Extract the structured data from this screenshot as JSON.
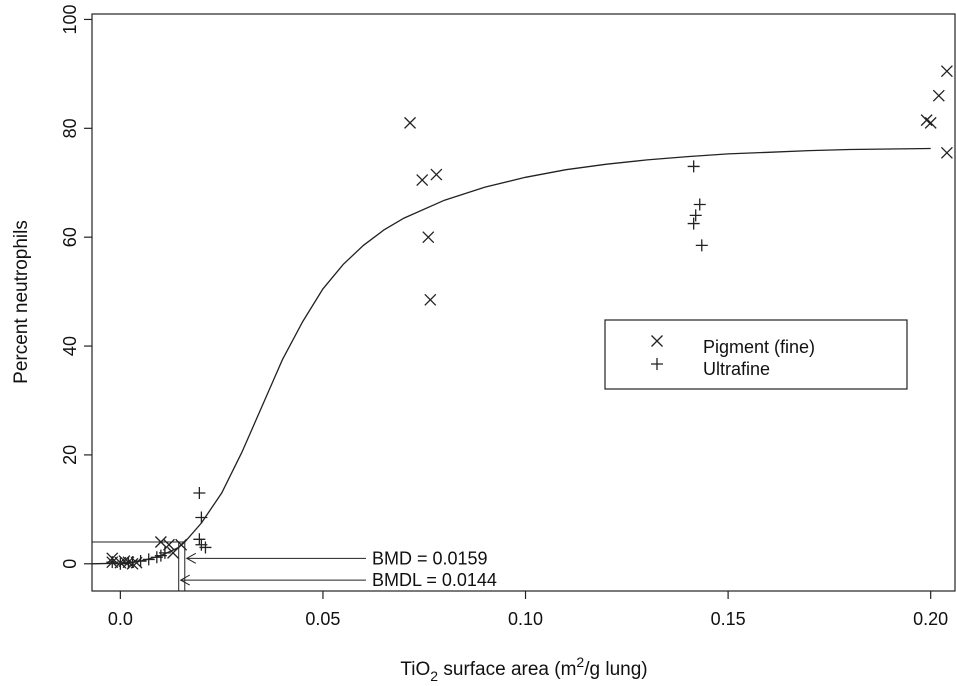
{
  "chart_data": {
    "type": "scatter",
    "xlabel_parts": {
      "pre": "TiO",
      "sub": "2",
      "mid": " surface area (m",
      "sup": "2",
      "post": "/g lung)"
    },
    "ylabel": "Percent neutrophils",
    "xlim": [
      -0.007,
      0.206
    ],
    "ylim": [
      -5,
      101
    ],
    "x_ticks": [
      0.0,
      0.05,
      0.1,
      0.15,
      0.2
    ],
    "x_tick_labels": [
      "0.0",
      "0.05",
      "0.10",
      "0.15",
      "0.20"
    ],
    "y_ticks": [
      0,
      20,
      40,
      60,
      80,
      100
    ],
    "y_tick_labels": [
      "0",
      "20",
      "40",
      "60",
      "80",
      "100"
    ],
    "legend_position": "right-center",
    "series": [
      {
        "name": "Pigment (fine)",
        "marker": "x",
        "points": [
          [
            -0.002,
            1.0
          ],
          [
            -0.002,
            0.3
          ],
          [
            0.0,
            0.2
          ],
          [
            0.001,
            0.5
          ],
          [
            0.002,
            0.3
          ],
          [
            0.003,
            0.0
          ],
          [
            0.004,
            0.2
          ],
          [
            0.01,
            4.0
          ],
          [
            0.012,
            3.5
          ],
          [
            0.013,
            2.0
          ],
          [
            0.015,
            3.5
          ],
          [
            0.0715,
            81.0
          ],
          [
            0.0745,
            70.5
          ],
          [
            0.076,
            60.0
          ],
          [
            0.0765,
            48.5
          ],
          [
            0.078,
            71.5
          ],
          [
            0.199,
            81.5
          ],
          [
            0.2,
            81.0
          ],
          [
            0.202,
            86.0
          ],
          [
            0.204,
            90.5
          ],
          [
            0.204,
            75.5
          ]
        ]
      },
      {
        "name": "Ultrafine",
        "marker": "+",
        "points": [
          [
            -0.002,
            0.3
          ],
          [
            0.0,
            0.0
          ],
          [
            0.002,
            0.2
          ],
          [
            0.003,
            0.3
          ],
          [
            0.005,
            0.5
          ],
          [
            0.007,
            0.8
          ],
          [
            0.009,
            1.2
          ],
          [
            0.01,
            1.5
          ],
          [
            0.011,
            2.0
          ],
          [
            0.0195,
            13.0
          ],
          [
            0.0195,
            4.5
          ],
          [
            0.02,
            3.5
          ],
          [
            0.02,
            8.5
          ],
          [
            0.021,
            3.0
          ],
          [
            0.1415,
            73.0
          ],
          [
            0.1415,
            62.5
          ],
          [
            0.142,
            64.0
          ],
          [
            0.143,
            66.0
          ],
          [
            0.1435,
            58.5
          ]
        ]
      }
    ],
    "fit_curve": {
      "type": "sigmoid",
      "description_hidden": false,
      "points": [
        [
          -0.007,
          0.0
        ],
        [
          0.0,
          0.1
        ],
        [
          0.005,
          0.5
        ],
        [
          0.01,
          1.5
        ],
        [
          0.0144,
          3.0
        ],
        [
          0.0159,
          4.0
        ],
        [
          0.02,
          7.5
        ],
        [
          0.025,
          13.0
        ],
        [
          0.03,
          20.5
        ],
        [
          0.035,
          29.0
        ],
        [
          0.04,
          37.5
        ],
        [
          0.045,
          44.5
        ],
        [
          0.05,
          50.5
        ],
        [
          0.055,
          55.0
        ],
        [
          0.06,
          58.5
        ],
        [
          0.065,
          61.3
        ],
        [
          0.07,
          63.5
        ],
        [
          0.08,
          66.8
        ],
        [
          0.09,
          69.2
        ],
        [
          0.1,
          71.0
        ],
        [
          0.11,
          72.4
        ],
        [
          0.12,
          73.4
        ],
        [
          0.13,
          74.2
        ],
        [
          0.14,
          74.8
        ],
        [
          0.15,
          75.3
        ],
        [
          0.16,
          75.6
        ],
        [
          0.17,
          75.9
        ],
        [
          0.18,
          76.1
        ],
        [
          0.19,
          76.2
        ],
        [
          0.2,
          76.3
        ]
      ]
    },
    "bmd_reference_y": 4.0,
    "annotations": [
      {
        "label": "BMD = 0.0159",
        "x": 0.0159,
        "y_text": 1.0
      },
      {
        "label": "BMDL = 0.0144",
        "x": 0.0144,
        "y_text": -3.0
      }
    ],
    "legend": [
      {
        "marker": "×",
        "label": "Pigment (fine)"
      },
      {
        "marker": "+",
        "label": "Ultrafine"
      }
    ]
  }
}
